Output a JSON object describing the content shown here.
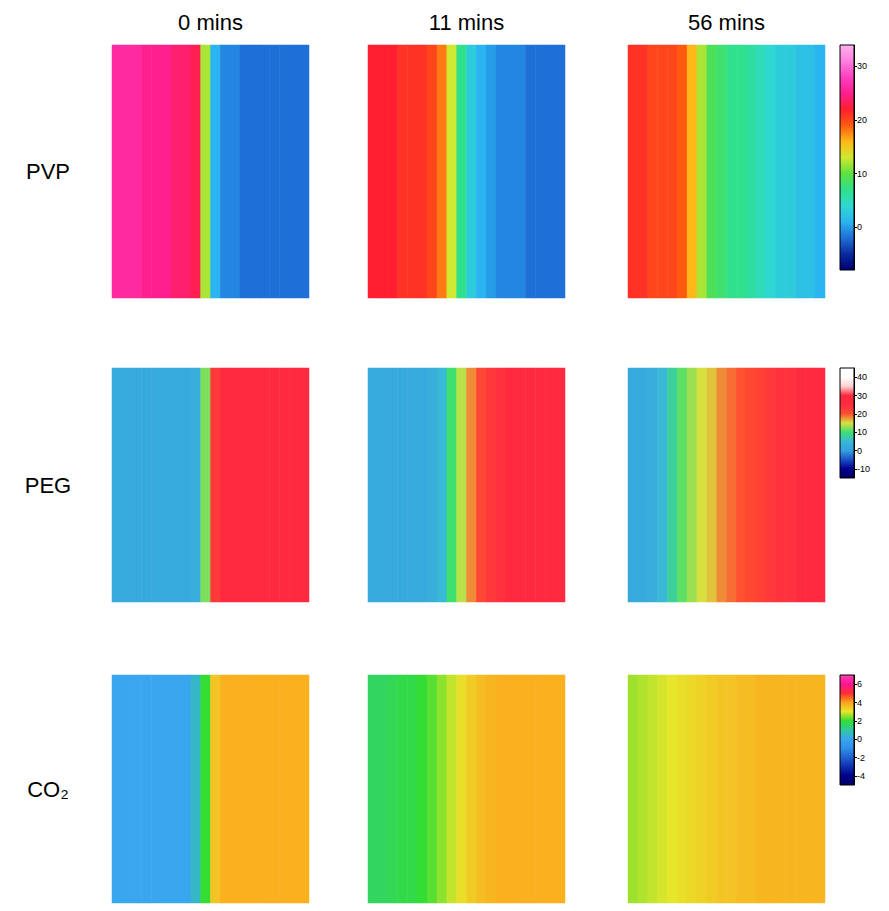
{
  "chart_data": {
    "type": "heatmap",
    "columns": [
      "0 mins",
      "11 mins",
      "56 mins"
    ],
    "rows": [
      {
        "name": "PVP",
        "colorbar": {
          "range": [
            -8,
            34
          ],
          "ticks": [
            0,
            10,
            20,
            30
          ],
          "colors": [
            "#000070",
            "#0a2aa0",
            "#1f6fd8",
            "#2ab4f0",
            "#2fd8d0",
            "#30e08a",
            "#5ee040",
            "#d0e830",
            "#ffb818",
            "#ff5a10",
            "#ff1f30",
            "#ff1f8f",
            "#ff40c0",
            "#ff80e0",
            "#ffb0f0"
          ]
        },
        "cells": [
          [
            26,
            26,
            26,
            25,
            25,
            25,
            24,
            24,
            23,
            12,
            1,
            -1,
            -1,
            -2,
            -2,
            -2,
            -2,
            -2,
            -2,
            -2
          ],
          [
            22,
            22,
            22,
            21,
            21,
            21,
            20,
            18,
            13,
            7,
            3,
            1,
            0,
            -1,
            -1,
            -1,
            -2,
            -2,
            -2,
            -2
          ],
          [
            21,
            21,
            20,
            20,
            20,
            19,
            16,
            12,
            9,
            8,
            7,
            7,
            6,
            5,
            4,
            3,
            3,
            2,
            2,
            1
          ]
        ]
      },
      {
        "name": "PEG",
        "colorbar": {
          "range": [
            -15,
            45
          ],
          "ticks": [
            -10,
            0,
            10,
            20,
            30,
            40
          ],
          "colors": [
            "#000060",
            "#000090",
            "#1a50c8",
            "#35a0e0",
            "#3ab8d8",
            "#40e070",
            "#d8e040",
            "#ff5030",
            "#ff2a40",
            "#ff2a40",
            "#ffd0d0",
            "#ffffff",
            "#ffffff"
          ]
        },
        "cells": [
          [
            2,
            2,
            2,
            2,
            2,
            2,
            2,
            2,
            3,
            12,
            23,
            25,
            25,
            25,
            25,
            25,
            25,
            25,
            25,
            25
          ],
          [
            2,
            2,
            2,
            2,
            2,
            2,
            3,
            5,
            10,
            14,
            18,
            21,
            23,
            24,
            25,
            25,
            25,
            25,
            25,
            25
          ],
          [
            2,
            2,
            3,
            5,
            8,
            11,
            13,
            15,
            16,
            18,
            19,
            20,
            21,
            22,
            23,
            24,
            24,
            25,
            25,
            25
          ]
        ]
      },
      {
        "name": "CO₂",
        "colorbar": {
          "range": [
            -5,
            7
          ],
          "ticks": [
            -4,
            -2,
            0,
            2,
            4,
            6
          ],
          "colors": [
            "#000060",
            "#00008b",
            "#1030b0",
            "#2060d0",
            "#2f8fe8",
            "#39a6ef",
            "#30c8a0",
            "#33dd33",
            "#e6e62a",
            "#ffa21c",
            "#ff3030",
            "#ff1493",
            "#ff40b0"
          ]
        },
        "cells": [
          [
            0,
            0,
            0,
            0,
            0,
            0,
            0,
            0,
            0.5,
            2,
            3.5,
            3.8,
            3.8,
            3.8,
            3.8,
            3.8,
            3.8,
            3.8,
            3.8,
            3.8
          ],
          [
            1.6,
            1.6,
            1.7,
            1.8,
            1.8,
            2,
            2.2,
            2.5,
            2.8,
            3.1,
            3.4,
            3.6,
            3.7,
            3.8,
            3.8,
            3.8,
            3.8,
            3.8,
            3.8,
            3.8
          ],
          [
            2.6,
            2.7,
            2.8,
            2.9,
            3,
            3.1,
            3.2,
            3.3,
            3.4,
            3.5,
            3.5,
            3.6,
            3.6,
            3.7,
            3.7,
            3.7,
            3.7,
            3.7,
            3.7,
            3.7
          ]
        ]
      }
    ]
  }
}
